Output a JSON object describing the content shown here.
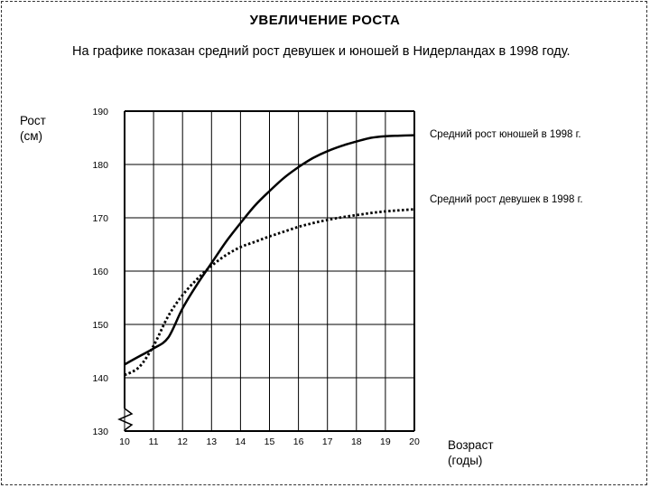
{
  "page": {
    "title": "УВЕЛИЧЕНИЕ РОСТА",
    "intro": "На графике показан средний рост девушек и юношей в Нидерландах в 1998 году."
  },
  "chart_data": {
    "type": "line",
    "title": "УВЕЛИЧЕНИЕ РОСТА",
    "ylabel": "Рост\n(см)",
    "xlabel": "Возраст\n(годы)",
    "xlim": [
      10,
      20
    ],
    "ylim": [
      130,
      190
    ],
    "y_axis_break": true,
    "grid": true,
    "legend": "right",
    "x_ticks": [
      "10",
      "11",
      "12",
      "13",
      "14",
      "15",
      "16",
      "17",
      "18",
      "19",
      "20"
    ],
    "y_ticks": [
      "130",
      "140",
      "150",
      "160",
      "170",
      "180",
      "190"
    ],
    "x": [
      10,
      10.5,
      11,
      11.5,
      12,
      12.5,
      13,
      13.5,
      14,
      14.5,
      15,
      15.5,
      16,
      16.5,
      17,
      17.5,
      18,
      18.5,
      19,
      19.5,
      20
    ],
    "series": [
      {
        "name": "Средний рост юношей в 1998 г.",
        "style": "solid",
        "color": "#000000",
        "values": [
          142.5,
          144,
          145.5,
          147.5,
          153,
          157.5,
          161.5,
          165.5,
          169,
          172.3,
          175,
          177.5,
          179.5,
          181.2,
          182.5,
          183.5,
          184.3,
          185,
          185.3,
          185.4,
          185.5
        ]
      },
      {
        "name": "Средний рост девушек в 1998 г.",
        "style": "dotted",
        "color": "#000000",
        "values": [
          140.5,
          142,
          146,
          151.5,
          155.5,
          158.5,
          161,
          163,
          164.5,
          165.5,
          166.5,
          167.4,
          168.3,
          169,
          169.6,
          170.1,
          170.5,
          170.9,
          171.2,
          171.4,
          171.6
        ]
      }
    ]
  }
}
